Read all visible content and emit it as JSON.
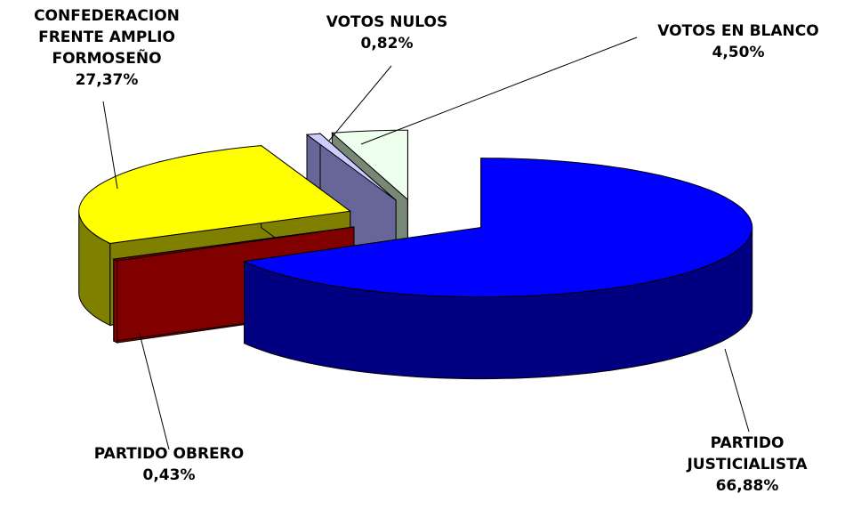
{
  "chart_data": {
    "type": "pie",
    "categories": [
      "PARTIDO JUSTICIALISTA",
      "PARTIDO OBRERO",
      "CONFEDERACION FRENTE AMPLIO FORMOSEÑO",
      "VOTOS NULOS",
      "VOTOS EN BLANCO"
    ],
    "values": [
      66.88,
      0.43,
      27.37,
      0.82,
      4.5
    ],
    "value_labels": [
      "66,88%",
      "0,43%",
      "27,37%",
      "0,82%",
      "4,50%"
    ],
    "colors": [
      "#0000ff",
      "#800000",
      "#ffff00",
      "#ccccff",
      "#eeffee"
    ],
    "side_colors": [
      "#000080",
      "#800000",
      "#808000",
      "#666699",
      "#778877"
    ]
  }
}
